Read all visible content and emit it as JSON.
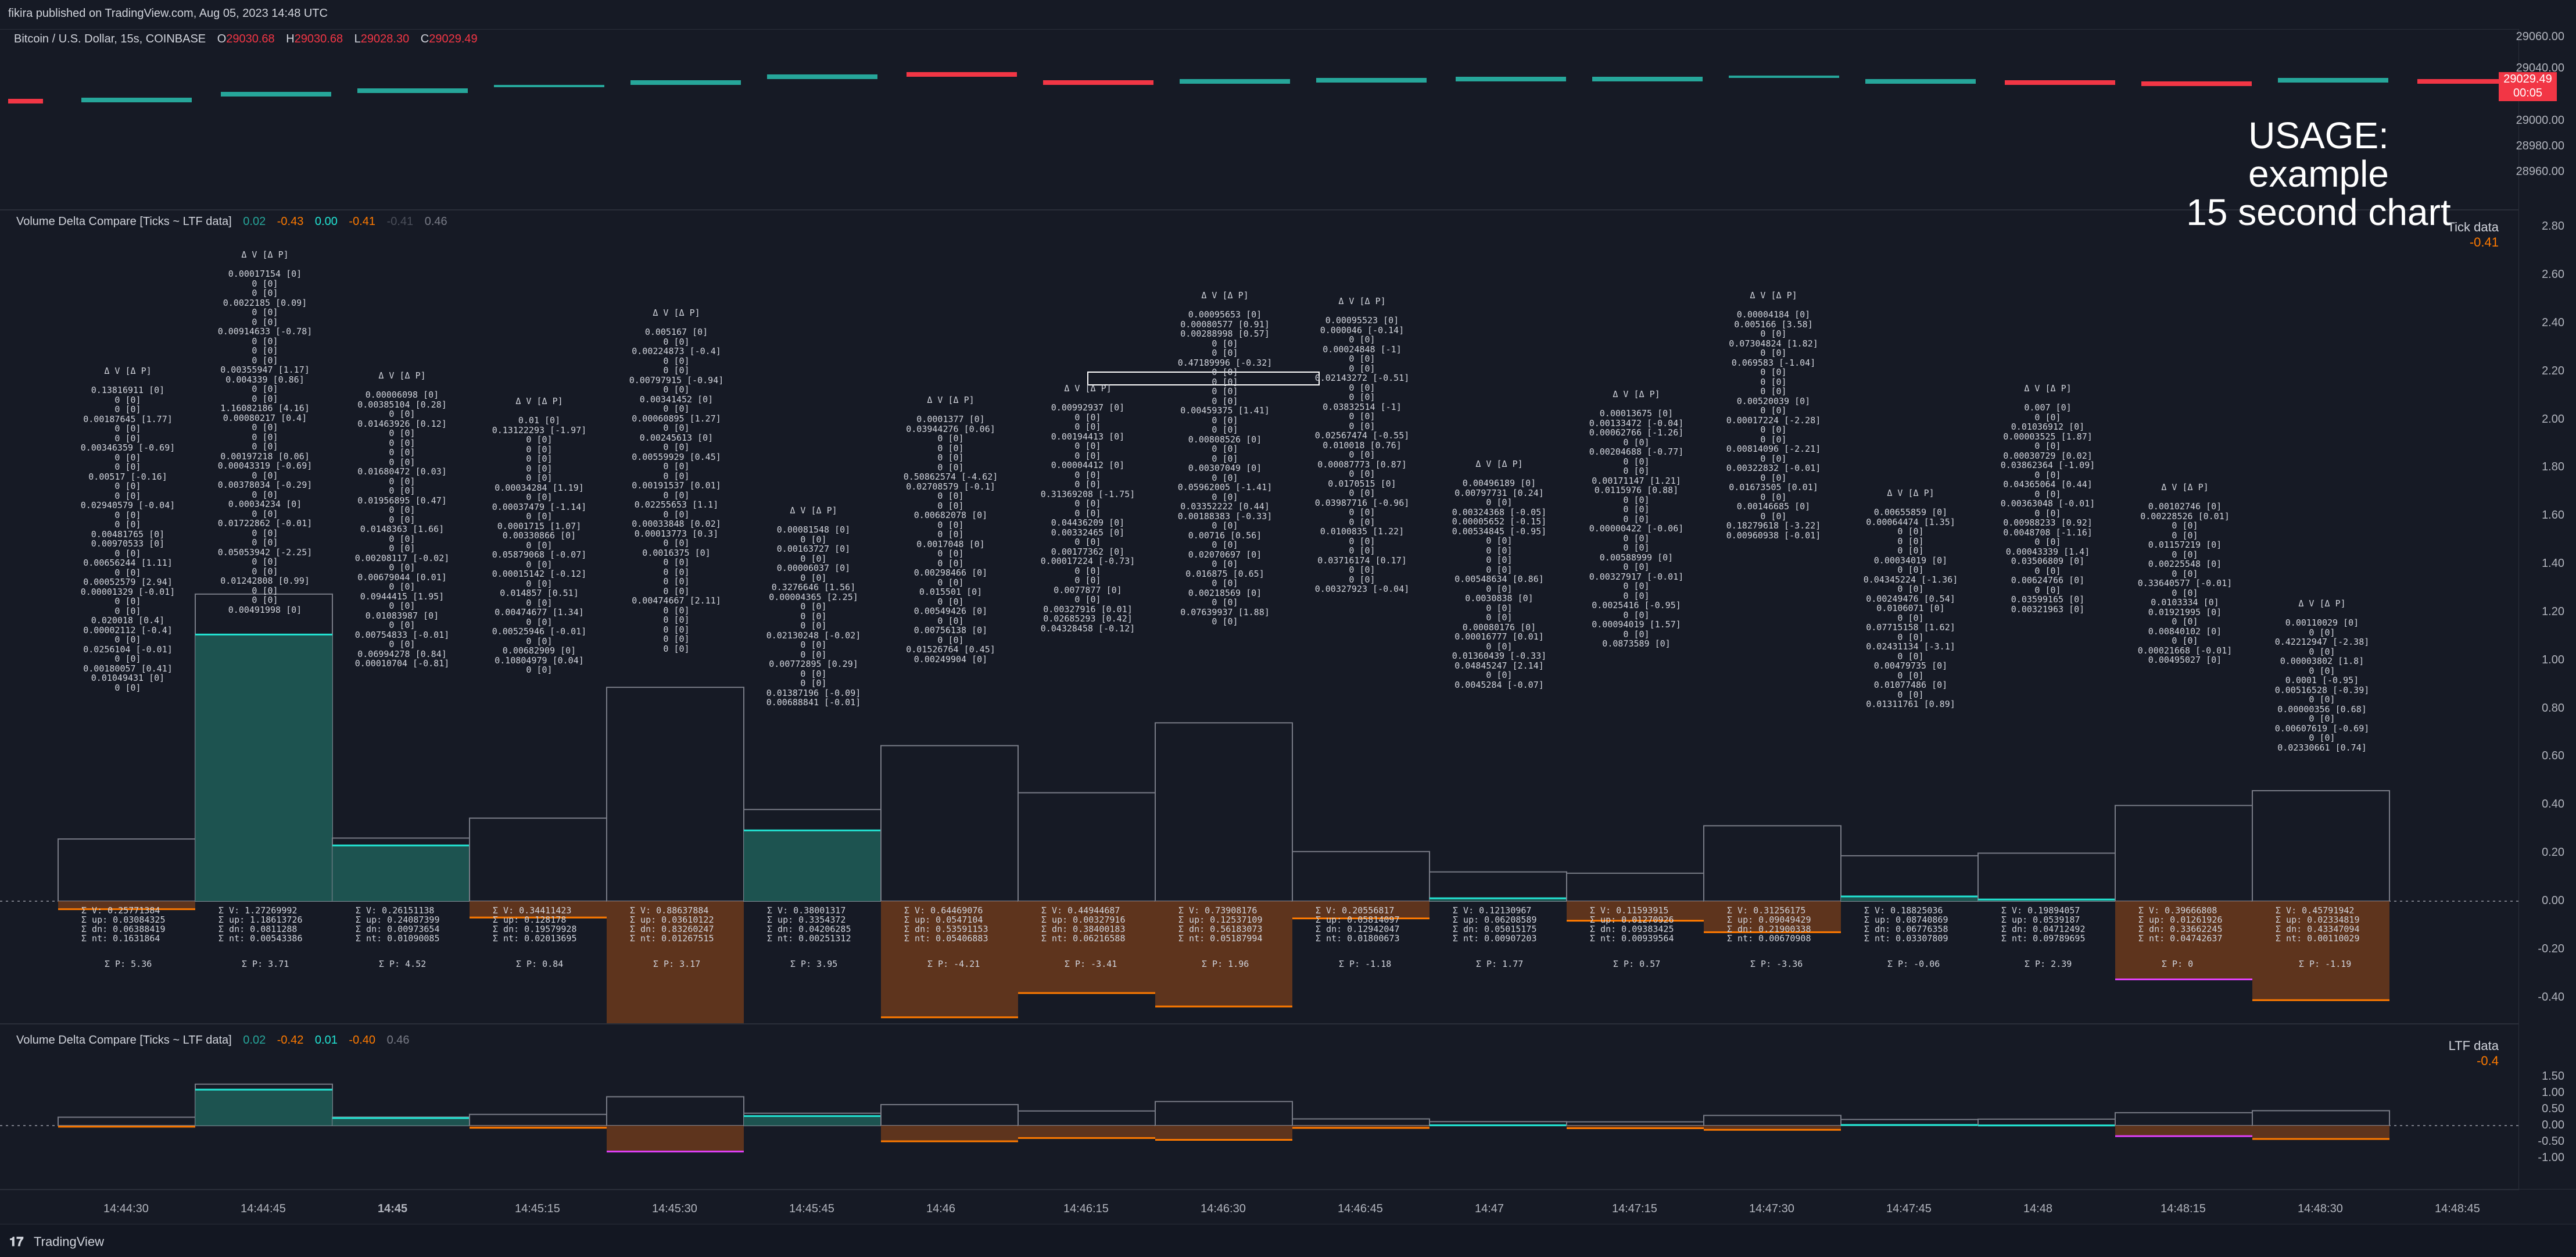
{
  "header": {
    "published": "fikira published on TradingView.com, Aug 05, 2023 14:48 UTC",
    "symbol": "Bitcoin / U.S. Dollar, 15s, COINBASE",
    "o_label": "O",
    "o": "29030.68",
    "h_label": "H",
    "h": "29030.68",
    "l_label": "L",
    "l": "29028.30",
    "c_label": "C",
    "c": "29029.49"
  },
  "price_axis": {
    "ticks": [
      "29060.00",
      "29040.00",
      "29000.00",
      "28980.00",
      "28960.00"
    ],
    "current": "29029.49",
    "countdown": "00:05"
  },
  "usage_text": [
    "USAGE: example",
    "15 second chart"
  ],
  "colors": {
    "up": "#26a69a",
    "down": "#f23645",
    "teal_fill": "#1f5e58",
    "orange_fill": "#6b3a1c",
    "orange_line": "#ff7a00",
    "magenta": "#e040fb",
    "grey": "#787b86",
    "yellow": "#d4e157",
    "cyan": "#22e5d4"
  },
  "pane1": {
    "legend_title": "Volume Delta Compare [Ticks ~ LTF data]",
    "legend_values": [
      "0.02",
      "-0.43",
      "0.00",
      "-0.41",
      "-0.41",
      "0.46"
    ],
    "label": "Tick data",
    "label_value": "-0.41",
    "axis_ticks": [
      "2.80",
      "2.60",
      "2.40",
      "2.20",
      "2.00",
      "1.80",
      "1.60",
      "1.40",
      "1.20",
      "1.00",
      "0.80",
      "0.60",
      "0.40",
      "0.20",
      "0.00",
      "-0.20",
      "-0.40"
    ]
  },
  "pane2": {
    "legend_title": "Volume Delta Compare [Ticks ~ LTF data]",
    "legend_values": [
      "0.02",
      "-0.42",
      "0.01",
      "-0.40",
      "0.46"
    ],
    "label": "LTF data",
    "label_value": "-0.4",
    "axis_ticks": [
      "1.50",
      "1.00",
      "0.50",
      "0.00",
      "-0.50",
      "-1.00"
    ]
  },
  "time_axis": [
    "14:44:30",
    "14:44:45",
    "14:45",
    "14:45:15",
    "14:45:30",
    "14:45:45",
    "14:46",
    "14:46:15",
    "14:46:30",
    "14:46:45",
    "14:47",
    "14:47:15",
    "14:47:30",
    "14:47:45",
    "14:48",
    "14:48:15",
    "14:48:30",
    "14:48:45"
  ],
  "footer": {
    "brand": "TradingView"
  },
  "candles": [
    {
      "dir": "down"
    },
    {
      "dir": "up"
    },
    {
      "dir": "up"
    },
    {
      "dir": "up"
    },
    {
      "dir": "up"
    },
    {
      "dir": "up"
    },
    {
      "dir": "up"
    },
    {
      "dir": "down"
    },
    {
      "dir": "down"
    },
    {
      "dir": "up"
    },
    {
      "dir": "up"
    },
    {
      "dir": "up"
    },
    {
      "dir": "up"
    },
    {
      "dir": "up"
    },
    {
      "dir": "up"
    },
    {
      "dir": "down"
    },
    {
      "dir": "down"
    },
    {
      "dir": "up"
    },
    {
      "dir": "down"
    }
  ],
  "bars": [
    {
      "v": "0.25771384",
      "up": "0.03084325",
      "dn": "0.06388419",
      "nt": "0.1631864",
      "p": "5.36"
    },
    {
      "v": "1.27269992",
      "up": "1.18613726",
      "dn": "0.0811288",
      "nt": "0.00543386",
      "p": "3.71"
    },
    {
      "v": "0.26151138",
      "up": "0.24087399",
      "dn": "0.00973654",
      "nt": "0.01090085",
      "p": "4.52"
    },
    {
      "v": "0.34411423",
      "up": "0.128178",
      "dn": "0.19579928",
      "nt": "0.02013695",
      "p": "0.84"
    },
    {
      "v": "0.88637884",
      "up": "0.03610122",
      "dn": "0.83260247",
      "nt": "0.01267515",
      "p": "3.17"
    },
    {
      "v": "0.38001317",
      "up": "0.3354372",
      "dn": "0.04206285",
      "nt": "0.00251312",
      "p": "3.95"
    },
    {
      "v": "0.64469076",
      "up": "0.0547104",
      "dn": "0.53591153",
      "nt": "0.05406883",
      "p": "-4.21"
    },
    {
      "v": "0.44944687",
      "up": "0.00327916",
      "dn": "0.38400183",
      "nt": "0.06216588",
      "p": "-3.41"
    },
    {
      "v": "0.73908176",
      "up": "0.12537109",
      "dn": "0.56183073",
      "nt": "0.05187994",
      "p": "1.96"
    },
    {
      "v": "0.20556817",
      "up": "0.05814097",
      "dn": "0.12942047",
      "nt": "0.01800673",
      "p": "-1.18"
    },
    {
      "v": "0.12130967",
      "up": "0.06208589",
      "dn": "0.05015175",
      "nt": "0.00907203",
      "p": "1.77"
    },
    {
      "v": "0.11593915",
      "up": "0.01270926",
      "dn": "0.09383425",
      "nt": "0.00939564",
      "p": "0.57"
    },
    {
      "v": "0.31256175",
      "up": "0.09049429",
      "dn": "0.21900338",
      "nt": "0.00670908",
      "p": "-3.36"
    },
    {
      "v": "0.18825036",
      "up": "0.08740869",
      "dn": "0.06776358",
      "nt": "0.03307809",
      "p": "-0.06"
    },
    {
      "v": "0.19894057",
      "up": "0.0539187",
      "dn": "0.04712492",
      "nt": "0.09789695",
      "p": "2.39"
    },
    {
      "v": "0.39666808",
      "up": "0.01261926",
      "dn": "0.33662245",
      "nt": "0.04742637",
      "p": "0"
    },
    {
      "v": "0.45791942",
      "up": "0.02334819",
      "dn": "0.43347094",
      "nt": "0.00110029",
      "p": "-1.19"
    }
  ],
  "info_blocks": [
    "Δ V [Δ P]\n\n0.13816911 [0]\n0 [0]\n0 [0]\n0.00187645 [1.77]\n0 [0]\n0 [0]\n0.00346359 [-0.69]\n0 [0]\n0 [0]\n0.00517 [-0.16]\n0 [0]\n0 [0]\n0.02940579 [-0.04]\n0 [0]\n0 [0]\n0.00481765 [0]\n0.00970533 [0]\n0 [0]\n0.00656244 [1.11]\n0 [0]\n0.00052579 [2.94]\n0.00001329 [-0.01]\n0 [0]\n0 [0]\n0.020018 [0.4]\n0.00002112 [-0.4]\n0 [0]\n0.0256104 [-0.01]\n0 [0]\n0.00180057 [0.41]\n0.01049431 [0]\n0 [0]",
    "Δ V [Δ P]\n\n0.00017154 [0]\n0 [0]\n0 [0]\n0.0022185 [0.09]\n0 [0]\n0 [0]\n0.00914633 [-0.78]\n0 [0]\n0 [0]\n0 [0]\n0.00355947 [1.17]\n0.004339 [0.86]\n0 [0]\n0 [0]\n1.16082186 [4.16]\n0.00080217 [0.4]\n0 [0]\n0 [0]\n0 [0]\n0.00197218 [0.06]\n0.00043319 [-0.69]\n0 [0]\n0.00378034 [-0.29]\n0 [0]\n0.00034234 [0]\n0 [0]\n0.01722862 [-0.01]\n0 [0]\n0 [0]\n0.05053942 [-2.25]\n0 [0]\n0 [0]\n0.01242808 [0.99]\n0 [0]\n0 [0]\n0.00491998 [0]",
    "Δ V [Δ P]\n\n0.00006098 [0]\n0.00385104 [0.28]\n0 [0]\n0.01463926 [0.12]\n0 [0]\n0 [0]\n0 [0]\n0 [0]\n0.01680472 [0.03]\n0 [0]\n0 [0]\n0.01956895 [0.47]\n0 [0]\n0 [0]\n0.0148363 [1.66]\n0 [0]\n0 [0]\n0.00208117 [-0.02]\n0 [0]\n0.00679044 [0.01]\n0 [0]\n0.0944415 [1.95]\n0 [0]\n0.01083987 [0]\n0 [0]\n0.00754833 [-0.01]\n0 [0]\n0.06994278 [0.84]\n0.00010704 [-0.81]",
    "Δ V [Δ P]\n\n0.01 [0]\n0.13122293 [-1.97]\n0 [0]\n0 [0]\n0 [0]\n0 [0]\n0 [0]\n0.00034284 [1.19]\n0 [0]\n0.00037479 [-1.14]\n0 [0]\n0.0001715 [1.07]\n0.00330866 [0]\n0 [0]\n0.05879068 [-0.07]\n0 [0]\n0.00015142 [-0.12]\n0 [0]\n0.014857 [0.51]\n0 [0]\n0.00474677 [1.34]\n0 [0]\n0.00525946 [-0.01]\n0 [0]\n0.00682909 [0]\n0.10804979 [0.04]\n0 [0]",
    "Δ V [Δ P]\n\n0.005167 [0]\n0 [0]\n0.00224873 [-0.4]\n0 [0]\n0 [0]\n0.00797915 [-0.94]\n0 [0]\n0.00341452 [0]\n0 [0]\n0.00060895 [1.27]\n0 [0]\n0.00245613 [0]\n0 [0]\n0.00559929 [0.45]\n0 [0]\n0 [0]\n0.00191537 [0.01]\n0 [0]\n0.02255653 [1.1]\n0 [0]\n0.00033848 [0.02]\n0.00013773 [0.3]\n0 [0]\n0.0016375 [0]\n0 [0]\n0 [0]\n0 [0]\n0 [0]\n0.00474667 [2.11]\n0 [0]\n0 [0]\n0 [0]\n0 [0]\n0 [0]",
    "Δ V [Δ P]\n\n0.00081548 [0]\n0 [0]\n0.00163727 [0]\n0 [0]\n0.00006037 [0]\n0 [0]\n0.3276646 [1.56]\n0.00004365 [2.25]\n0 [0]\n0 [0]\n0 [0]\n0.02130248 [-0.02]\n0 [0]\n0 [0]\n0.00772895 [0.29]\n0 [0]\n0 [0]\n0.01387196 [-0.09]\n0.00688841 [-0.01]",
    "Δ V [Δ P]\n\n0.0001377 [0]\n0.03944276 [0.06]\n0 [0]\n0 [0]\n0 [0]\n0 [0]\n0.50862574 [-4.62]\n0.02708579 [-0.1]\n0 [0]\n0 [0]\n0.00682078 [0]\n0 [0]\n0 [0]\n0.0017048 [0]\n0 [0]\n0 [0]\n0.00298466 [0]\n0 [0]\n0.015501 [0]\n0 [0]\n0.00549426 [0]\n0 [0]\n0.00756138 [0]\n0 [0]\n0.01526764 [0.45]\n0.00249904 [0]",
    "Δ V [Δ P]\n\n0.00992937 [0]\n0 [0]\n0 [0]\n0.00194413 [0]\n0 [0]\n0 [0]\n0.00004412 [0]\n0 [0]\n0 [0]\n0.31369208 [-1.75]\n0 [0]\n0 [0]\n0.04436209 [0]\n0.00332465 [0]\n0 [0]\n0.00177362 [0]\n0.00017224 [-0.73]\n0 [0]\n0 [0]\n0.0077877 [0]\n0 [0]\n0.00327916 [0.01]\n0.02685293 [0.42]\n0.04328458 [-0.12]",
    "Δ V [Δ P]\n\n0.00095653 [0]\n0.00080577 [0.91]\n0.00288998 [0.57]\n0 [0]\n0 [0]\n0.47189996 [-0.32]\n0 [0]\n0 [0]\n0 [0]\n0 [0]\n0.00459375 [1.41]\n0 [0]\n0 [0]\n0.00808526 [0]\n0 [0]\n0 [0]\n0.00307049 [0]\n0 [0]\n0.05962005 [-1.41]\n0 [0]\n0.03352222 [0.44]\n0.00188383 [-0.33]\n0 [0]\n0.00716 [0.56]\n0 [0]\n0.02070697 [0]\n0 [0]\n0.016875 [0.65]\n0 [0]\n0.00218569 [0]\n0 [0]\n0.07639937 [1.88]\n0 [0]",
    "Δ V [Δ P]\n\n0.00095523 [0]\n0.000046 [-0.14]\n0 [0]\n0.00024848 [-1]\n0 [0]\n0 [0]\n0.02143272 [-0.51]\n0 [0]\n0 [0]\n0.03832514 [-1]\n0 [0]\n0 [0]\n0.02567474 [-0.55]\n0.010018 [0.76]\n0 [0]\n0.00087773 [0.87]\n0 [0]\n0.0170515 [0]\n0 [0]\n0.03987716 [-0.96]\n0 [0]\n0 [0]\n0.0100835 [1.22]\n0 [0]\n0 [0]\n0.03716174 [0.17]\n0 [0]\n0 [0]\n0.00327923 [-0.04]",
    "Δ V [Δ P]\n\n0.00496189 [0]\n0.00797731 [0.24]\n0 [0]\n0.00324368 [-0.05]\n0.00005652 [-0.15]\n0.00534845 [-0.95]\n0 [0]\n0 [0]\n0 [0]\n0 [0]\n0.00548634 [0.86]\n0 [0]\n0.0030838 [0]\n0 [0]\n0 [0]\n0.00080176 [0]\n0.00016777 [0.01]\n0 [0]\n0.01360439 [-0.33]\n0.04845247 [2.14]\n0 [0]\n0.0045284 [-0.07]",
    "Δ V [Δ P]\n\n0.00013675 [0]\n0.00133472 [-0.04]\n0.00062766 [-1.26]\n0 [0]\n0.00204688 [-0.77]\n0 [0]\n0 [0]\n0.00171147 [1.21]\n0.0115976 [0.88]\n0 [0]\n0 [0]\n0 [0]\n0.00000422 [-0.06]\n0 [0]\n0 [0]\n0.00588999 [0]\n0 [0]\n0.00327917 [-0.01]\n0 [0]\n0 [0]\n0.0025416 [-0.95]\n0 [0]\n0.00094019 [1.57]\n0 [0]\n0.0873589 [0]",
    "Δ V [Δ P]\n\n0.00004184 [0]\n0.005166 [3.58]\n0 [0]\n0.07304824 [1.82]\n0 [0]\n0.069583 [-1.04]\n0 [0]\n0 [0]\n0 [0]\n0.00520039 [0]\n0 [0]\n0.00017224 [-2.28]\n0 [0]\n0 [0]\n0.00814096 [-2.21]\n0 [0]\n0.00322832 [-0.01]\n0 [0]\n0.01673505 [0.01]\n0 [0]\n0.00146685 [0]\n0 [0]\n0.18279618 [-3.22]\n0.00960938 [-0.01]",
    "Δ V [Δ P]\n\n0.00655859 [0]\n0.00064474 [1.35]\n0 [0]\n0 [0]\n0 [0]\n0.00034019 [0]\n0 [0]\n0.04345224 [-1.36]\n0 [0]\n0.00249476 [0.54]\n0.0106071 [0]\n0 [0]\n0.07715158 [1.62]\n0 [0]\n0.02431134 [-3.1]\n0 [0]\n0.00479735 [0]\n0 [0]\n0.01077486 [0]\n0 [0]\n0.01311761 [0.89]",
    "Δ V [Δ P]\n\n0.007 [0]\n0 [0]\n0.01036912 [0]\n0.00003525 [1.87]\n0 [0]\n0.00030729 [0.02]\n0.03862364 [-1.09]\n0 [0]\n0.04365064 [0.44]\n0 [0]\n0.00363048 [-0.01]\n0 [0]\n0.00988233 [0.92]\n0.0048708 [-1.16]\n0 [0]\n0.00043339 [1.4]\n0.03506809 [0]\n0 [0]\n0.00624766 [0]\n0 [0]\n0.03599165 [0]\n0.00321963 [0]",
    "Δ V [Δ P]\n\n0.00102746 [0]\n0.00228526 [0.01]\n0 [0]\n0 [0]\n0.01157219 [0]\n0 [0]\n0.00225548 [0]\n0 [0]\n0.33640577 [-0.01]\n0 [0]\n0.0103334 [0]\n0.01921995 [0]\n0 [0]\n0.00840102 [0]\n0 [0]\n0.00021668 [-0.01]\n0.00495027 [0]",
    "Δ V [Δ P]\n\n0.00110029 [0]\n0 [0]\n0.42212947 [-2.38]\n0 [0]\n0.00003802 [1.8]\n0 [0]\n0.0001 [-0.95]\n0.00516528 [-0.39]\n0 [0]\n0.00000356 [0.68]\n0 [0]\n0.00607619 [-0.69]\n0 [0]\n0.02330661 [0.74]"
  ]
}
